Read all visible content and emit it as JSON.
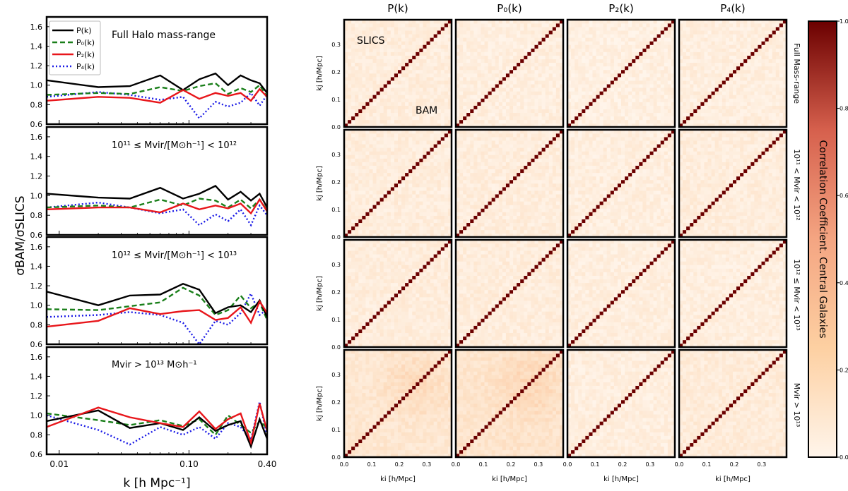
{
  "chart_data": [
    {
      "type": "line",
      "panel": "left",
      "x_scale": "log",
      "xlim": [
        0.008,
        0.4
      ],
      "xticks": [
        0.01,
        0.1,
        0.4
      ],
      "xtick_labels": [
        "0.01",
        "0.10",
        "0.40"
      ],
      "ylim": [
        0.6,
        1.7
      ],
      "yticks": [
        0.6,
        0.8,
        1.0,
        1.2,
        1.4,
        1.6
      ],
      "ytick_labels": [
        "0.6",
        "0.8",
        "1.0",
        "1.2",
        "1.4",
        "1.6"
      ],
      "xlabel": "k [h Mpc⁻¹]",
      "ylabel": "σBAM/σSLICS",
      "legend": {
        "placement": "top-left",
        "entries": [
          {
            "label": "P(k)",
            "color": "#000000",
            "style": "solid"
          },
          {
            "label": "P₀(k)",
            "color": "#1a7f1a",
            "style": "dashed"
          },
          {
            "label": "P₂(k)",
            "color": "#e8161b",
            "style": "solid"
          },
          {
            "label": "P₄(k)",
            "color": "#1a1ae6",
            "style": "dotted"
          }
        ]
      },
      "subplots": [
        {
          "title": "Full Halo mass-range",
          "x": [
            0.008,
            0.02,
            0.035,
            0.06,
            0.09,
            0.12,
            0.16,
            0.2,
            0.25,
            0.3,
            0.35,
            0.4
          ],
          "series": [
            {
              "name": "P(k)",
              "values": [
                1.05,
                0.98,
                0.99,
                1.1,
                0.95,
                1.06,
                1.12,
                1.0,
                1.1,
                1.05,
                1.02,
                0.92
              ]
            },
            {
              "name": "P0(k)",
              "values": [
                0.9,
                0.92,
                0.91,
                0.98,
                0.94,
                0.99,
                1.02,
                0.91,
                0.97,
                0.93,
                1.0,
                0.88
              ]
            },
            {
              "name": "P2(k)",
              "values": [
                0.84,
                0.88,
                0.87,
                0.82,
                0.95,
                0.86,
                0.92,
                0.89,
                0.92,
                0.84,
                0.96,
                0.88
              ]
            },
            {
              "name": "P4(k)",
              "values": [
                0.88,
                0.93,
                0.9,
                0.85,
                0.88,
                0.66,
                0.83,
                0.78,
                0.82,
                0.92,
                0.79,
                0.9
              ]
            }
          ]
        },
        {
          "title": "10¹¹ ≤ Mvir/[M⊙h⁻¹] < 10¹²",
          "x": [
            0.008,
            0.02,
            0.035,
            0.06,
            0.09,
            0.12,
            0.16,
            0.2,
            0.25,
            0.3,
            0.35,
            0.4
          ],
          "series": [
            {
              "name": "P(k)",
              "values": [
                1.02,
                0.98,
                0.97,
                1.08,
                0.97,
                1.02,
                1.1,
                0.96,
                1.04,
                0.95,
                1.02,
                0.88
              ]
            },
            {
              "name": "P0(k)",
              "values": [
                0.88,
                0.9,
                0.88,
                0.96,
                0.9,
                0.97,
                0.95,
                0.88,
                0.96,
                0.87,
                0.96,
                0.85
              ]
            },
            {
              "name": "P2(k)",
              "values": [
                0.86,
                0.88,
                0.88,
                0.83,
                0.92,
                0.86,
                0.9,
                0.87,
                0.92,
                0.82,
                0.96,
                0.84
              ]
            },
            {
              "name": "P4(k)",
              "values": [
                0.88,
                0.93,
                0.88,
                0.82,
                0.86,
                0.7,
                0.81,
                0.74,
                0.86,
                0.7,
                0.9,
                0.8
              ]
            }
          ]
        },
        {
          "title": "10¹² ≤ Mvir/[M⊙h⁻¹] < 10¹³",
          "x": [
            0.008,
            0.02,
            0.035,
            0.06,
            0.09,
            0.12,
            0.16,
            0.2,
            0.25,
            0.3,
            0.35,
            0.4
          ],
          "series": [
            {
              "name": "P(k)",
              "values": [
                1.14,
                1.0,
                1.1,
                1.11,
                1.22,
                1.16,
                0.92,
                0.98,
                1.0,
                0.93,
                1.05,
                0.88
              ]
            },
            {
              "name": "P0(k)",
              "values": [
                0.96,
                0.95,
                0.99,
                1.03,
                1.18,
                1.1,
                0.9,
                0.95,
                1.1,
                0.97,
                1.03,
                0.85
              ]
            },
            {
              "name": "P2(k)",
              "values": [
                0.78,
                0.84,
                0.97,
                0.91,
                0.94,
                0.95,
                0.85,
                0.87,
                0.98,
                0.82,
                1.04,
                0.92
              ]
            },
            {
              "name": "P4(k)",
              "values": [
                0.88,
                0.9,
                0.93,
                0.9,
                0.82,
                0.6,
                0.84,
                0.8,
                0.92,
                1.12,
                0.9,
                0.96
              ]
            }
          ]
        },
        {
          "title": "Mvir > 10¹³ M⊙h⁻¹",
          "x": [
            0.008,
            0.02,
            0.035,
            0.06,
            0.09,
            0.12,
            0.16,
            0.2,
            0.25,
            0.3,
            0.35,
            0.4
          ],
          "series": [
            {
              "name": "P(k)",
              "values": [
                0.94,
                1.05,
                0.87,
                0.92,
                0.85,
                0.98,
                0.84,
                0.9,
                0.94,
                0.68,
                0.96,
                0.76
              ]
            },
            {
              "name": "P0(k)",
              "values": [
                1.02,
                0.95,
                0.9,
                0.95,
                0.89,
                0.96,
                0.8,
                1.0,
                0.9,
                0.82,
                0.94,
                0.87
              ]
            },
            {
              "name": "P2(k)",
              "values": [
                0.88,
                1.08,
                0.98,
                0.92,
                0.88,
                1.04,
                0.86,
                0.96,
                1.02,
                0.72,
                1.12,
                0.84
              ]
            },
            {
              "name": "P4(k)",
              "values": [
                1.0,
                0.85,
                0.7,
                0.88,
                0.8,
                0.88,
                0.76,
                0.92,
                0.88,
                0.75,
                1.14,
                0.78
              ]
            }
          ]
        }
      ]
    },
    {
      "type": "heatmap",
      "panel": "right",
      "column_titles": [
        "P(k)",
        "P₀(k)",
        "P₂(k)",
        "P₄(k)"
      ],
      "row_labels": [
        "Full Mass-range",
        "10¹¹ < Mvir < 10¹²",
        "10¹² ≤ Mvir < 10¹³",
        "Mvir > 10¹³"
      ],
      "xlabel": "ki [h/Mpc]",
      "ylabel": "kj [h/Mpc]",
      "axis_range": [
        0.0,
        0.39
      ],
      "ticks": [
        0.0,
        0.1,
        0.2,
        0.3
      ],
      "tick_labels": [
        "0.0",
        "0.1",
        "0.2",
        "0.3"
      ],
      "grid_size": 30,
      "diagonal_value": 1.0,
      "offdiag_mean": [
        [
          0.06,
          0.05,
          0.04,
          0.05
        ],
        [
          0.06,
          0.06,
          0.05,
          0.06
        ],
        [
          0.06,
          0.06,
          0.05,
          0.05
        ],
        [
          0.1,
          0.12,
          0.05,
          0.07
        ]
      ],
      "annotations": {
        "upper": "SLICS",
        "lower": "BAM"
      },
      "colorbar": {
        "label": "Correlation Coefficient. Central Galaxies",
        "range": [
          0.0,
          1.0
        ],
        "ticks": [
          0.0,
          0.2,
          0.4,
          0.6,
          0.8,
          1.0
        ],
        "tick_labels": [
          "0.0",
          "0.2",
          "0.4",
          "0.6",
          "0.8",
          "1.0"
        ],
        "color_low": "#fff5eb",
        "color_mid": "#f4a582",
        "color_high": "#6b0000"
      }
    }
  ]
}
